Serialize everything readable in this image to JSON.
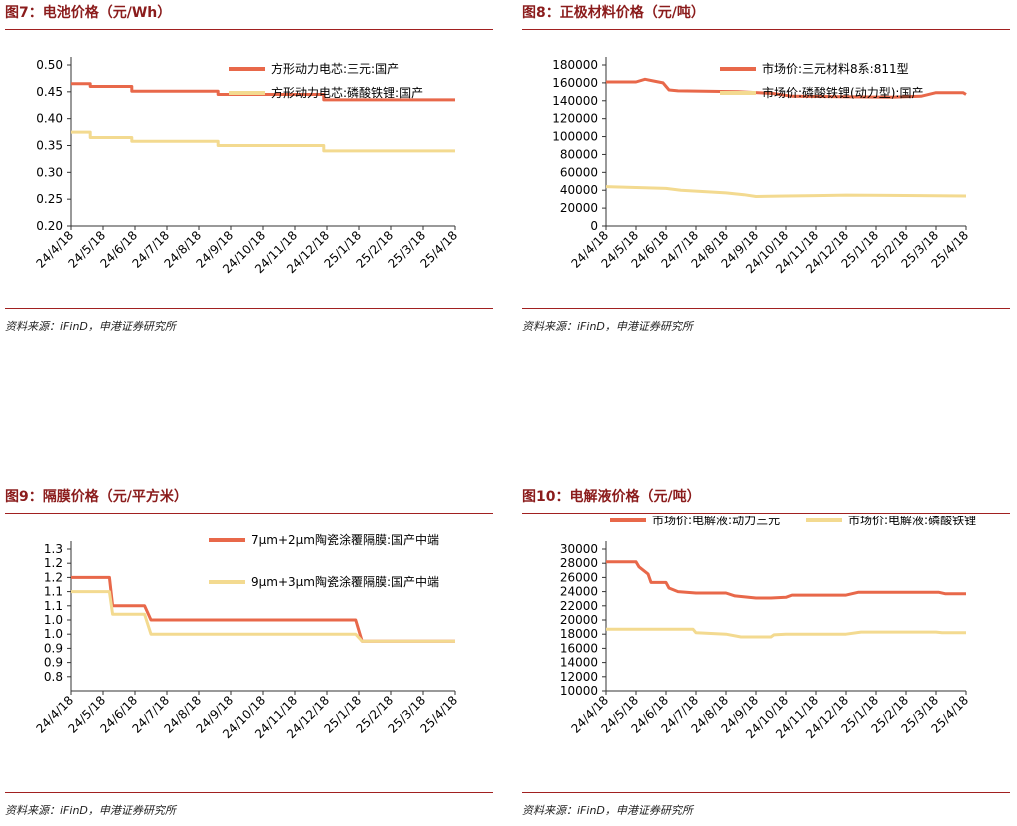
{
  "source_label": "资料来源：iFinD，申港证券研究所",
  "colors": {
    "title": "#8b1c1c",
    "rule": "#a12020",
    "orange": "#e8684a",
    "yellow": "#f3da90"
  },
  "chart_data": [
    {
      "id": "fig7",
      "title": "图7：电池价格（元/Wh）",
      "type": "line",
      "ylim": [
        0.2,
        0.5
      ],
      "yticks": [
        "0.50",
        "0.45",
        "0.40",
        "0.35",
        "0.30",
        "0.25",
        "0.20"
      ],
      "ytick_values": [
        0.5,
        0.45,
        0.4,
        0.35,
        0.3,
        0.25,
        0.2
      ],
      "categories": [
        "24/4/18",
        "24/5/18",
        "24/6/18",
        "24/7/18",
        "24/8/18",
        "24/9/18",
        "24/10/18",
        "24/11/18",
        "24/12/18",
        "25/1/18",
        "25/2/18",
        "25/3/18",
        "25/4/18"
      ],
      "legend_layout": "stacked-top-right",
      "series": [
        {
          "name": "方形动力电芯:三元:国产",
          "color": "#e8684a",
          "points": [
            [
              0,
              0.465
            ],
            [
              0.6,
              0.465
            ],
            [
              0.6,
              0.46
            ],
            [
              1.9,
              0.46
            ],
            [
              1.9,
              0.451
            ],
            [
              4.6,
              0.451
            ],
            [
              4.6,
              0.445
            ],
            [
              7.9,
              0.445
            ],
            [
              7.9,
              0.435
            ],
            [
              12,
              0.435
            ]
          ]
        },
        {
          "name": "方形动力电芯:磷酸铁锂:国产",
          "color": "#f3da90",
          "points": [
            [
              0,
              0.375
            ],
            [
              0.6,
              0.375
            ],
            [
              0.6,
              0.365
            ],
            [
              1.9,
              0.365
            ],
            [
              1.9,
              0.358
            ],
            [
              4.6,
              0.358
            ],
            [
              4.6,
              0.35
            ],
            [
              7.9,
              0.35
            ],
            [
              7.9,
              0.34
            ],
            [
              12,
              0.34
            ]
          ]
        }
      ]
    },
    {
      "id": "fig8",
      "title": "图8：正极材料价格（元/吨）",
      "type": "line",
      "ylim": [
        0,
        180000
      ],
      "yticks": [
        "180000",
        "160000",
        "140000",
        "120000",
        "100000",
        "80000",
        "60000",
        "40000",
        "20000",
        "0"
      ],
      "ytick_values": [
        180000,
        160000,
        140000,
        120000,
        100000,
        80000,
        60000,
        40000,
        20000,
        0
      ],
      "categories": [
        "24/4/18",
        "24/5/18",
        "24/6/18",
        "24/7/18",
        "24/8/18",
        "24/9/18",
        "24/10/18",
        "24/11/18",
        "24/12/18",
        "25/1/18",
        "25/2/18",
        "25/3/18",
        "25/4/18"
      ],
      "legend_layout": "stacked-top-right",
      "series": [
        {
          "name": "市场价:三元材料8系:811型",
          "color": "#e8684a",
          "points": [
            [
              0,
              161000
            ],
            [
              1,
              161000
            ],
            [
              1.3,
              164000
            ],
            [
              1.6,
              162000
            ],
            [
              1.9,
              160000
            ],
            [
              2.1,
              152000
            ],
            [
              2.4,
              151000
            ],
            [
              4.4,
              150000
            ],
            [
              5.6,
              148000
            ],
            [
              6.2,
              145000
            ],
            [
              9.5,
              144000
            ],
            [
              10.5,
              145000
            ],
            [
              11,
              149000
            ],
            [
              11.9,
              149000
            ],
            [
              12,
              147000
            ]
          ]
        },
        {
          "name": "市场价:磷酸铁锂(动力型):国产",
          "color": "#f3da90",
          "points": [
            [
              0,
              44000
            ],
            [
              1,
              43000
            ],
            [
              2,
              42000
            ],
            [
              2.5,
              40000
            ],
            [
              4,
              37000
            ],
            [
              4.6,
              35000
            ],
            [
              5,
              33000
            ],
            [
              6,
              33500
            ],
            [
              7,
              34000
            ],
            [
              8,
              34500
            ],
            [
              12,
              33500
            ]
          ]
        }
      ]
    },
    {
      "id": "fig9",
      "title": "图9：隔膜价格（元/平方米）",
      "type": "line",
      "ylim": [
        0.8,
        1.3
      ],
      "yticks": [
        "1.3",
        "1.2",
        "1.2",
        "1.1",
        "1.1",
        "1.0",
        "1.0",
        "0.9",
        "0.9",
        "0.8"
      ],
      "ytick_values": [
        1.3,
        1.25,
        1.2,
        1.15,
        1.1,
        1.05,
        1.0,
        0.95,
        0.9,
        0.85
      ],
      "categories": [
        "24/4/18",
        "24/5/18",
        "24/6/18",
        "24/7/18",
        "24/8/18",
        "24/9/18",
        "24/10/18",
        "24/11/18",
        "24/12/18",
        "25/1/18",
        "25/2/18",
        "25/3/18",
        "25/4/18"
      ],
      "legend_layout": "split-right",
      "series": [
        {
          "name": "7μm+2μm陶瓷涂覆隔膜:国产中端",
          "color": "#e8684a",
          "points": [
            [
              0,
              1.2
            ],
            [
              1.2,
              1.2
            ],
            [
              1.3,
              1.1
            ],
            [
              2.3,
              1.1
            ],
            [
              2.5,
              1.05
            ],
            [
              8.9,
              1.05
            ],
            [
              9.1,
              0.975
            ],
            [
              12,
              0.975
            ]
          ]
        },
        {
          "name": "9μm+3μm陶瓷涂覆隔膜:国产中端",
          "color": "#f3da90",
          "points": [
            [
              0,
              1.15
            ],
            [
              1.2,
              1.15
            ],
            [
              1.3,
              1.07
            ],
            [
              2.3,
              1.07
            ],
            [
              2.5,
              1.0
            ],
            [
              8.9,
              1.0
            ],
            [
              9.1,
              0.975
            ],
            [
              12,
              0.975
            ]
          ]
        }
      ]
    },
    {
      "id": "fig10",
      "title": "图10：电解液价格（元/吨）",
      "type": "line",
      "ylim": [
        10000,
        30000
      ],
      "yticks": [
        "30000",
        "28000",
        "26000",
        "24000",
        "22000",
        "20000",
        "18000",
        "16000",
        "14000",
        "12000",
        "10000"
      ],
      "ytick_values": [
        30000,
        28000,
        26000,
        24000,
        22000,
        20000,
        18000,
        16000,
        14000,
        12000,
        10000
      ],
      "categories": [
        "24/4/18",
        "24/5/18",
        "24/6/18",
        "24/7/18",
        "24/8/18",
        "24/9/18",
        "24/10/18",
        "24/11/18",
        "24/12/18",
        "25/1/18",
        "25/2/18",
        "25/3/18",
        "25/4/18"
      ],
      "legend_layout": "inline-top",
      "series": [
        {
          "name": "市场价:电解液:动力三元",
          "color": "#e8684a",
          "points": [
            [
              0,
              28200
            ],
            [
              1,
              28200
            ],
            [
              1.1,
              27500
            ],
            [
              1.4,
              26500
            ],
            [
              1.5,
              25300
            ],
            [
              2,
              25300
            ],
            [
              2.1,
              24500
            ],
            [
              2.4,
              24000
            ],
            [
              3,
              23800
            ],
            [
              4,
              23800
            ],
            [
              4.3,
              23400
            ],
            [
              5,
              23100
            ],
            [
              5.5,
              23100
            ],
            [
              6,
              23200
            ],
            [
              6.2,
              23500
            ],
            [
              8,
              23500
            ],
            [
              8.4,
              23900
            ],
            [
              11.1,
              23900
            ],
            [
              11.3,
              23700
            ],
            [
              12,
              23700
            ]
          ]
        },
        {
          "name": "市场价:电解液:磷酸铁锂",
          "color": "#f3da90",
          "points": [
            [
              0,
              18700
            ],
            [
              2.9,
              18700
            ],
            [
              3,
              18200
            ],
            [
              4,
              18000
            ],
            [
              4.5,
              17600
            ],
            [
              5.5,
              17600
            ],
            [
              5.6,
              17900
            ],
            [
              6,
              18000
            ],
            [
              8,
              18000
            ],
            [
              8.5,
              18300
            ],
            [
              11,
              18300
            ],
            [
              11.2,
              18200
            ],
            [
              12,
              18200
            ]
          ]
        }
      ]
    }
  ]
}
